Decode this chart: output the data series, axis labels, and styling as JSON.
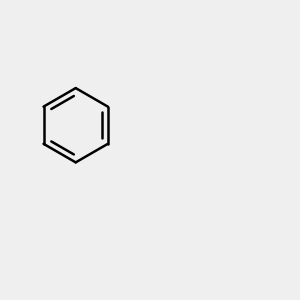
{
  "bg_color": "#efefef",
  "bond_color": "#000000",
  "bond_width": 1.8,
  "atom_colors": {
    "O": "#ff0000",
    "P": "#cc8800"
  },
  "figsize": [
    3.0,
    3.0
  ],
  "dpi": 100,
  "xlim": [
    0.0,
    6.0
  ],
  "ylim": [
    0.5,
    6.5
  ]
}
